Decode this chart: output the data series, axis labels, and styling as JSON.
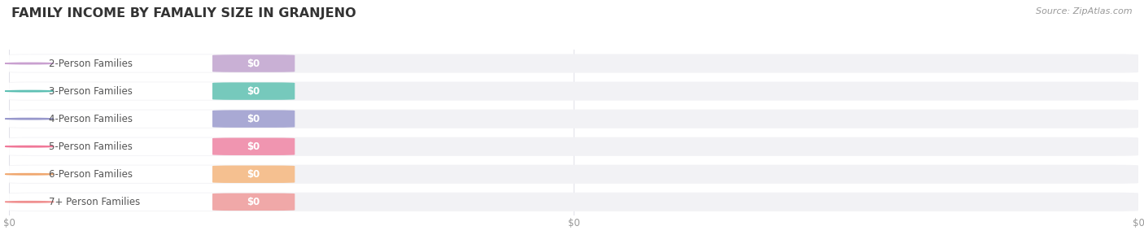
{
  "title": "FAMILY INCOME BY FAMALIY SIZE IN GRANJENO",
  "source": "Source: ZipAtlas.com",
  "categories": [
    "2-Person Families",
    "3-Person Families",
    "4-Person Families",
    "5-Person Families",
    "6-Person Families",
    "7+ Person Families"
  ],
  "values": [
    0,
    0,
    0,
    0,
    0,
    0
  ],
  "bar_colors": [
    "#c9b0d5",
    "#76c9bc",
    "#a9a9d4",
    "#f095b0",
    "#f5c090",
    "#f0a8a8"
  ],
  "icon_colors": [
    "#c9a0d0",
    "#5ec0b4",
    "#9898cc",
    "#f07898",
    "#f0a870",
    "#f09090"
  ],
  "background_color": "#ffffff",
  "bar_bg_color": "#f2f2f5",
  "grid_color": "#e0e0e8",
  "label_fontsize": 8.5,
  "value_fontsize": 8.5,
  "title_fontsize": 11.5,
  "source_fontsize": 8.0,
  "tick_fontsize": 8.5,
  "tick_color": "#999999",
  "label_text_color": "#555555",
  "title_color": "#333333"
}
